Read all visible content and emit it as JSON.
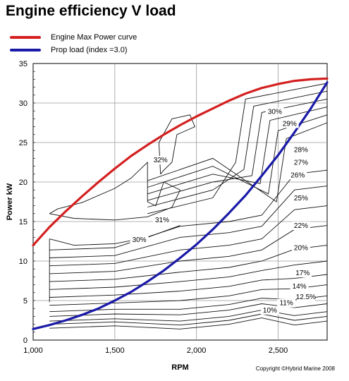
{
  "chart_data": {
    "type": "line",
    "title": "Engine efficiency V load",
    "xlabel": "RPM",
    "ylabel": "Power kW",
    "xlim": [
      1000,
      2800
    ],
    "ylim": [
      0,
      35
    ],
    "x_ticks": [
      1000,
      1500,
      2000,
      2500
    ],
    "x_tick_labels": [
      "1,000",
      "1,500",
      "2,000",
      "2,500"
    ],
    "y_ticks": [
      0,
      5,
      10,
      15,
      20,
      25,
      30,
      35
    ],
    "y_tick_labels": [
      "0",
      "5",
      "10",
      "15",
      "20",
      "25",
      "30",
      "35"
    ],
    "grid": true,
    "legend_position": "top-left",
    "series": [
      {
        "name": "Engine Max Power curve",
        "color": "#d42020",
        "x": [
          1000,
          1100,
          1200,
          1300,
          1400,
          1500,
          1600,
          1700,
          1800,
          1900,
          2000,
          2100,
          2200,
          2300,
          2400,
          2500,
          2600,
          2700,
          2800
        ],
        "y": [
          12.0,
          14.3,
          16.3,
          18.2,
          20.0,
          21.7,
          23.3,
          24.7,
          26.0,
          27.2,
          28.3,
          29.3,
          30.3,
          31.2,
          31.9,
          32.4,
          32.8,
          33.0,
          33.1
        ]
      },
      {
        "name": "Prop load (index =3.0)",
        "color": "#1a1aa8",
        "x": [
          1000,
          1100,
          1200,
          1300,
          1400,
          1500,
          1600,
          1700,
          1800,
          1900,
          2000,
          2100,
          2200,
          2300,
          2400,
          2500,
          2600,
          2700,
          2800
        ],
        "y": [
          1.4,
          1.9,
          2.5,
          3.2,
          4.0,
          5.0,
          6.1,
          7.4,
          8.8,
          10.4,
          12.1,
          14.0,
          16.1,
          18.3,
          20.8,
          23.4,
          26.3,
          29.3,
          32.6
        ]
      }
    ],
    "contour_labels": [
      {
        "label": "32%",
        "x": 1780,
        "y": 22.5
      },
      {
        "label": "31%",
        "x": 1790,
        "y": 14.9
      },
      {
        "label": "30%",
        "x": 1650,
        "y": 12.4
      },
      {
        "label": "30%",
        "x": 2480,
        "y": 28.6
      },
      {
        "label": "29%",
        "x": 2570,
        "y": 27.1
      },
      {
        "label": "28%",
        "x": 2640,
        "y": 23.8
      },
      {
        "label": "27%",
        "x": 2640,
        "y": 22.2
      },
      {
        "label": "26%",
        "x": 2620,
        "y": 20.6
      },
      {
        "label": "25%",
        "x": 2640,
        "y": 17.7
      },
      {
        "label": "22%",
        "x": 2640,
        "y": 14.2
      },
      {
        "label": "20%",
        "x": 2640,
        "y": 11.4
      },
      {
        "label": "17%",
        "x": 2650,
        "y": 8.2
      },
      {
        "label": "14%",
        "x": 2630,
        "y": 6.5
      },
      {
        "label": "12.5%",
        "x": 2670,
        "y": 5.2
      },
      {
        "label": "11%",
        "x": 2550,
        "y": 4.4
      },
      {
        "label": "10%",
        "x": 2450,
        "y": 3.5
      }
    ]
  },
  "copyright": "Copyright ©Hybrid Marine 2008"
}
